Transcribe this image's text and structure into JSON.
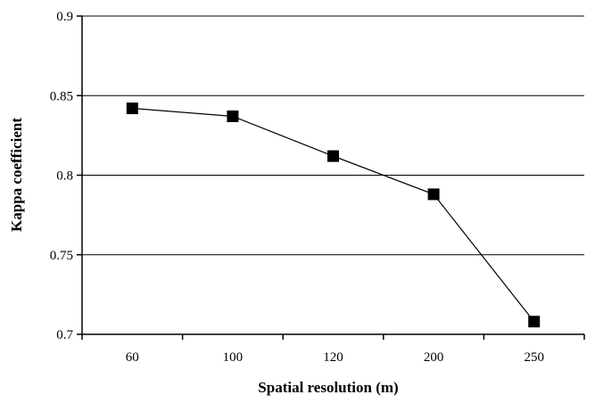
{
  "chart_data": {
    "type": "line",
    "title": "",
    "xlabel": "Spatial resolution (m)",
    "ylabel": "Kappa coefficient",
    "categories": [
      "60",
      "100",
      "120",
      "200",
      "250"
    ],
    "series": [
      {
        "values": [
          0.842,
          0.837,
          0.812,
          0.788,
          0.708
        ]
      }
    ],
    "ylim": [
      0.7,
      0.9
    ],
    "yticks": [
      "0.7",
      "0.75",
      "0.8",
      "0.85",
      "0.9"
    ],
    "marker": "square",
    "line_color": "#000000",
    "marker_color": "#000000",
    "grid": "horizontal",
    "legend": "none"
  }
}
